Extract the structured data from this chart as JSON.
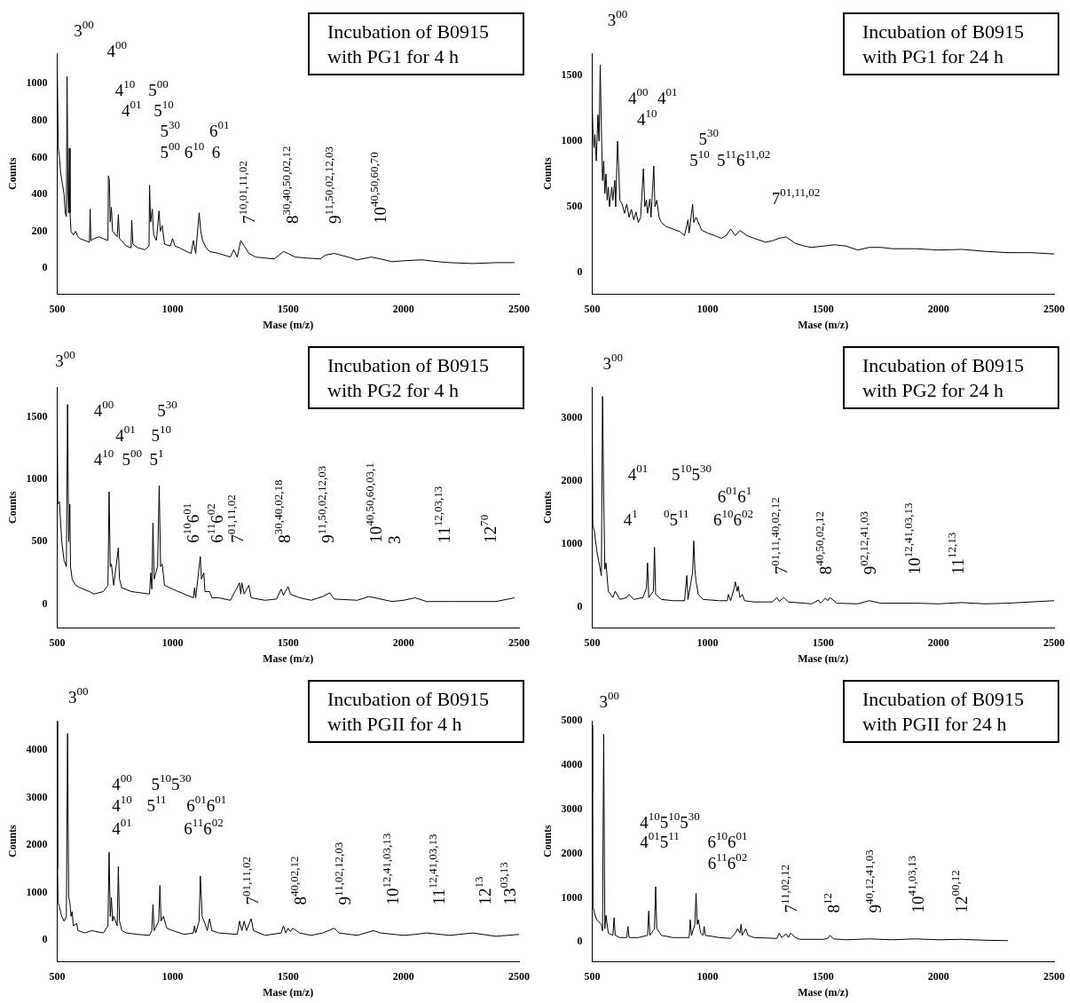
{
  "chart_data": [
    {
      "type": "line",
      "title": "Incubation of B0915 with PG1 for 4 h",
      "xlabel": "Mase (m/z)",
      "ylabel": "Counts",
      "color": "#000000",
      "xlim": [
        500,
        2500
      ],
      "xticks": [
        500,
        1000,
        1500,
        2000,
        2500
      ],
      "ylim": [
        -140,
        1165
      ],
      "yticks": [
        0,
        200,
        400,
        600,
        800,
        1000
      ],
      "x": [
        500,
        505,
        510,
        515,
        520,
        530,
        535,
        540,
        543,
        547,
        550,
        553,
        556,
        560,
        570,
        580,
        590,
        600,
        620,
        640,
        643,
        646,
        660,
        680,
        700,
        720,
        722,
        726,
        730,
        735,
        740,
        760,
        765,
        770,
        800,
        820,
        823,
        828,
        850,
        880,
        898,
        900,
        905,
        912,
        918,
        930,
        941,
        947,
        955,
        965,
        990,
        1000,
        1010,
        1030,
        1060,
        1080,
        1090,
        1100,
        1115,
        1122,
        1130,
        1145,
        1160,
        1200,
        1250,
        1265,
        1280,
        1295,
        1310,
        1330,
        1360,
        1400,
        1440,
        1460,
        1480,
        1500,
        1530,
        1580,
        1640,
        1660,
        1700,
        1760,
        1800,
        1860,
        1900,
        1950,
        2000,
        2080,
        2150,
        2200,
        2300,
        2400,
        2480
      ],
      "values": [
        1150,
        650,
        600,
        520,
        480,
        400,
        300,
        280,
        1040,
        400,
        300,
        650,
        300,
        200,
        180,
        200,
        170,
        160,
        150,
        140,
        320,
        150,
        160,
        170,
        160,
        150,
        500,
        480,
        250,
        330,
        200,
        170,
        290,
        160,
        120,
        110,
        260,
        130,
        110,
        100,
        120,
        450,
        250,
        320,
        180,
        150,
        310,
        200,
        230,
        130,
        120,
        160,
        120,
        110,
        90,
        80,
        150,
        80,
        300,
        200,
        150,
        110,
        90,
        80,
        60,
        100,
        60,
        150,
        120,
        80,
        60,
        55,
        50,
        70,
        90,
        80,
        60,
        55,
        50,
        70,
        80,
        60,
        45,
        60,
        50,
        35,
        40,
        45,
        35,
        30,
        25,
        30,
        30
      ],
      "annotations": [
        "3$^{00}$",
        "4$^{00}$",
        "4$^{10}$",
        "5$^{00}$",
        "4$^{01}$",
        "5$^{10}$",
        "5$^{30}$",
        "6$^{01}$",
        "5$^{00}$",
        "6$^{10}$",
        "6",
        "7$^{10,01,11,02}$",
        "8$^{30,40,50,02,12}$",
        "9$^{11,50,02,12,03}$",
        "10$^{40,50,60,70}$"
      ]
    },
    {
      "type": "line",
      "title": "Incubation of B0915 with PG1 for 24 h",
      "xlabel": "Mase (m/z)",
      "ylabel": "Counts",
      "color": "#000000",
      "xlim": [
        500,
        2500
      ],
      "xticks": [
        500,
        1000,
        1500,
        2000,
        2500
      ],
      "ylim": [
        -165,
        1670
      ],
      "yticks": [
        0,
        500,
        1000,
        1500
      ],
      "x": [
        500,
        503,
        508,
        512,
        518,
        525,
        530,
        535,
        540,
        545,
        550,
        555,
        560,
        565,
        570,
        575,
        585,
        590,
        598,
        602,
        610,
        615,
        620,
        630,
        640,
        650,
        660,
        670,
        680,
        690,
        700,
        710,
        722,
        728,
        735,
        740,
        750,
        755,
        767,
        772,
        780,
        790,
        800,
        820,
        850,
        880,
        900,
        915,
        920,
        935,
        940,
        950,
        960,
        975,
        1000,
        1030,
        1060,
        1080,
        1100,
        1120,
        1140,
        1170,
        1200,
        1250,
        1280,
        1310,
        1340,
        1380,
        1420,
        1450,
        1500,
        1550,
        1600,
        1650,
        1700,
        1750,
        1800,
        1900,
        2000,
        2100,
        2200,
        2300,
        2400,
        2500
      ],
      "values": [
        1300,
        1100,
        950,
        1050,
        850,
        1200,
        1000,
        1580,
        1100,
        700,
        850,
        600,
        750,
        550,
        650,
        500,
        650,
        550,
        700,
        500,
        1000,
        800,
        550,
        520,
        450,
        520,
        420,
        480,
        400,
        460,
        380,
        420,
        790,
        500,
        550,
        450,
        560,
        420,
        810,
        500,
        550,
        420,
        380,
        350,
        330,
        310,
        280,
        400,
        300,
        520,
        380,
        420,
        380,
        320,
        300,
        280,
        260,
        280,
        330,
        280,
        320,
        280,
        260,
        230,
        240,
        260,
        270,
        220,
        200,
        190,
        200,
        210,
        200,
        170,
        190,
        190,
        180,
        180,
        170,
        175,
        160,
        150,
        150,
        140
      ],
      "annotations": [
        "3$^{00}$",
        "4$^{00}$",
        "4$^{01}$",
        "4$^{10}$",
        "5$^{30}$",
        "5$^{10}$",
        "5$^{11}$6$^{11,02}$",
        "7$^{01,11,02}$"
      ]
    },
    {
      "type": "line",
      "title": "Incubation of B0915 with PG2 for 4 h",
      "xlabel": "Mase (m/z)",
      "ylabel": "Counts",
      "color": "#000000",
      "xlim": [
        500,
        2500
      ],
      "xticks": [
        500,
        1000,
        1500,
        2000,
        2500
      ],
      "ylim": [
        -190,
        1740
      ],
      "yticks": [
        0,
        500,
        1000,
        1500
      ],
      "x": [
        500,
        503,
        510,
        520,
        530,
        540,
        545,
        550,
        555,
        558,
        565,
        580,
        600,
        640,
        660,
        700,
        720,
        725,
        730,
        735,
        745,
        765,
        770,
        780,
        820,
        860,
        900,
        905,
        910,
        915,
        920,
        935,
        942,
        948,
        955,
        965,
        1000,
        1050,
        1090,
        1095,
        1100,
        1120,
        1125,
        1135,
        1140,
        1160,
        1170,
        1200,
        1250,
        1290,
        1295,
        1300,
        1310,
        1330,
        1340,
        1400,
        1450,
        1470,
        1480,
        1500,
        1510,
        1550,
        1600,
        1650,
        1680,
        1700,
        1800,
        1850,
        1900,
        1950,
        2000,
        2050,
        2100,
        2200,
        2300,
        2400,
        2480
      ],
      "values": [
        1700,
        800,
        820,
        500,
        350,
        300,
        1600,
        500,
        800,
        300,
        200,
        150,
        130,
        100,
        80,
        100,
        150,
        900,
        300,
        320,
        150,
        450,
        200,
        130,
        100,
        90,
        80,
        250,
        120,
        650,
        200,
        300,
        950,
        300,
        320,
        150,
        120,
        80,
        50,
        130,
        50,
        380,
        200,
        250,
        100,
        100,
        50,
        50,
        30,
        170,
        80,
        170,
        80,
        150,
        50,
        30,
        40,
        120,
        70,
        140,
        80,
        50,
        30,
        60,
        90,
        40,
        30,
        60,
        40,
        20,
        30,
        50,
        20,
        20,
        20,
        20,
        50
      ],
      "annotations": [
        "3$^{00}$",
        "4$^{00}$",
        "5$^{30}$",
        "4$^{01}$",
        "5$^{10}$",
        "4$^{10}$",
        "5$^{00}$",
        "5$^{1}$",
        "6$^{10}$6$^{01}$",
        "6$^{11}$6$^{02}$",
        "7$^{01,11,02}$",
        "8$^{30,40,02,18}$",
        "9$^{11,50,02,12,03}$",
        "10$^{40,50,60,03,1}$",
        "3",
        "11$^{12,03,13}$",
        "12$^{70}$"
      ]
    },
    {
      "type": "line",
      "title": "Incubation of B0915 with PG2 for 24 h",
      "xlabel": "Mase (m/z)",
      "ylabel": "Counts",
      "color": "#000000",
      "xlim": [
        500,
        2500
      ],
      "xticks": [
        500,
        1000,
        1500,
        2000,
        2500
      ],
      "ylim": [
        -330,
        3500
      ],
      "yticks": [
        0,
        1000,
        2000,
        3000
      ],
      "x": [
        500,
        503,
        510,
        520,
        540,
        545,
        550,
        555,
        560,
        570,
        590,
        600,
        620,
        650,
        660,
        680,
        720,
        735,
        740,
        745,
        765,
        770,
        775,
        800,
        850,
        900,
        910,
        915,
        935,
        940,
        945,
        950,
        960,
        980,
        1050,
        1085,
        1090,
        1100,
        1115,
        1120,
        1128,
        1133,
        1140,
        1150,
        1160,
        1200,
        1280,
        1300,
        1310,
        1330,
        1350,
        1450,
        1480,
        1490,
        1510,
        1520,
        1530,
        1560,
        1650,
        1700,
        1750,
        1900,
        2000,
        2100,
        2200,
        2300,
        2400,
        2500
      ],
      "values": [
        3400,
        1300,
        1200,
        900,
        500,
        3350,
        1800,
        600,
        700,
        250,
        150,
        250,
        120,
        150,
        200,
        120,
        150,
        300,
        700,
        150,
        250,
        950,
        200,
        120,
        100,
        100,
        500,
        120,
        550,
        1050,
        600,
        400,
        200,
        120,
        100,
        100,
        200,
        100,
        300,
        400,
        250,
        330,
        150,
        200,
        100,
        80,
        80,
        150,
        90,
        150,
        80,
        50,
        110,
        60,
        140,
        100,
        150,
        60,
        50,
        100,
        60,
        60,
        50,
        70,
        50,
        60,
        80,
        100
      ],
      "annotations": [
        "3$^{00}$",
        "4$^{01}$",
        "5$^{10}$5$^{30}$",
        "6$^{01}$6$^{1}$",
        "4$^{1}$",
        "$^{0}$5$^{11}$",
        "6$^{10}$6$^{02}$",
        "7$^{01,11,40,02,12}$",
        "8$^{40,50,02,12}$",
        "9$^{02,12,41,03}$",
        "10$^{12,41,03,13}$",
        "11$^{12,13}$"
      ]
    },
    {
      "type": "line",
      "title": "Incubation of B0915 with PGII for 4 h",
      "xlabel": "Mase (m/z)",
      "ylabel": "Counts",
      "color": "#000000",
      "xlim": [
        500,
        2500
      ],
      "xticks": [
        500,
        1000,
        1500,
        2000,
        2500
      ],
      "ylim": [
        -450,
        4620
      ],
      "yticks": [
        0,
        1000,
        2000,
        3000,
        4000
      ],
      "x": [
        500,
        502,
        504,
        510,
        520,
        530,
        540,
        545,
        550,
        555,
        560,
        565,
        570,
        585,
        590,
        620,
        650,
        700,
        720,
        725,
        730,
        735,
        740,
        745,
        760,
        765,
        770,
        780,
        800,
        850,
        900,
        910,
        915,
        920,
        940,
        945,
        950,
        960,
        975,
        1000,
        1050,
        1090,
        1095,
        1100,
        1115,
        1120,
        1128,
        1140,
        1150,
        1160,
        1170,
        1200,
        1280,
        1290,
        1300,
        1310,
        1320,
        1340,
        1350,
        1400,
        1470,
        1480,
        1490,
        1500,
        1510,
        1520,
        1550,
        1600,
        1650,
        1700,
        1720,
        1800,
        1870,
        1900,
        2000,
        2050,
        2100,
        2200,
        2300,
        2400,
        2500
      ],
      "values": [
        4600,
        1500,
        800,
        700,
        500,
        400,
        500,
        4350,
        900,
        800,
        500,
        600,
        300,
        350,
        200,
        150,
        200,
        150,
        300,
        1850,
        500,
        900,
        400,
        500,
        300,
        1550,
        400,
        200,
        150,
        120,
        100,
        200,
        750,
        200,
        400,
        1150,
        400,
        500,
        250,
        200,
        120,
        150,
        300,
        150,
        400,
        1350,
        500,
        350,
        200,
        450,
        200,
        150,
        120,
        400,
        200,
        400,
        200,
        450,
        200,
        100,
        150,
        300,
        150,
        250,
        180,
        250,
        150,
        100,
        150,
        250,
        150,
        100,
        200,
        150,
        100,
        120,
        150,
        100,
        150,
        80,
        120
      ],
      "annotations": [
        "3$^{00}$",
        "4$^{00}$",
        "5$^{10}$5$^{30}$",
        "4$^{10}$",
        "5$^{11}$",
        "6$^{01}$6$^{01}$",
        "4$^{01}$",
        "6$^{11}$6$^{02}$",
        "7$^{01,11,02}$",
        "8$^{40,02,12}$",
        "9$^{11,02,12,03}$",
        "10$^{12,41,03,13}$",
        "11$^{12,41,03,13}$",
        "12$^{13}$",
        "13$^{03,13}$"
      ]
    },
    {
      "type": "line",
      "title": "Incubation of B0915 with PGII for 24 h",
      "xlabel": "Mase (m/z)",
      "ylabel": "Counts",
      "color": "#000000",
      "xlim": [
        500,
        2500
      ],
      "xticks": [
        500,
        1000,
        1500,
        2000,
        2500
      ],
      "ylim": [
        -440,
        5000
      ],
      "yticks": [
        0,
        1000,
        2000,
        3000,
        4000,
        5000
      ],
      "x": [
        500,
        502,
        504,
        510,
        520,
        540,
        545,
        550,
        555,
        560,
        570,
        590,
        595,
        600,
        620,
        650,
        655,
        660,
        700,
        740,
        745,
        750,
        770,
        775,
        780,
        800,
        850,
        870,
        920,
        925,
        930,
        945,
        950,
        955,
        960,
        970,
        980,
        985,
        990,
        1050,
        1100,
        1120,
        1130,
        1140,
        1145,
        1150,
        1165,
        1175,
        1200,
        1300,
        1310,
        1320,
        1340,
        1350,
        1360,
        1380,
        1400,
        1500,
        1520,
        1530,
        1545,
        1600,
        1700,
        1800,
        1900,
        2000,
        2100,
        2200,
        2300
      ],
      "values": [
        3400,
        4900,
        800,
        650,
        500,
        400,
        250,
        4700,
        300,
        600,
        200,
        150,
        550,
        150,
        100,
        100,
        350,
        100,
        100,
        150,
        700,
        150,
        300,
        1250,
        300,
        150,
        100,
        100,
        100,
        500,
        150,
        400,
        1100,
        400,
        500,
        200,
        150,
        350,
        150,
        100,
        80,
        200,
        300,
        200,
        400,
        150,
        300,
        150,
        100,
        80,
        200,
        100,
        180,
        100,
        200,
        100,
        60,
        60,
        80,
        150,
        70,
        50,
        70,
        50,
        70,
        50,
        60,
        40,
        30
      ],
      "annotations": [
        "3$^{00}$",
        "4$^{10}$5$^{10}$5$^{30}$",
        "4$^{01}$5$^{11}$",
        "6$^{10}$6$^{01}$",
        "6$^{11}$6$^{02}$",
        "7$^{11,02,12}$",
        "8$^{12}$",
        "9$^{40,12,41,03}$",
        "10$^{41,03,13}$",
        "12$^{00,12}$"
      ]
    }
  ]
}
